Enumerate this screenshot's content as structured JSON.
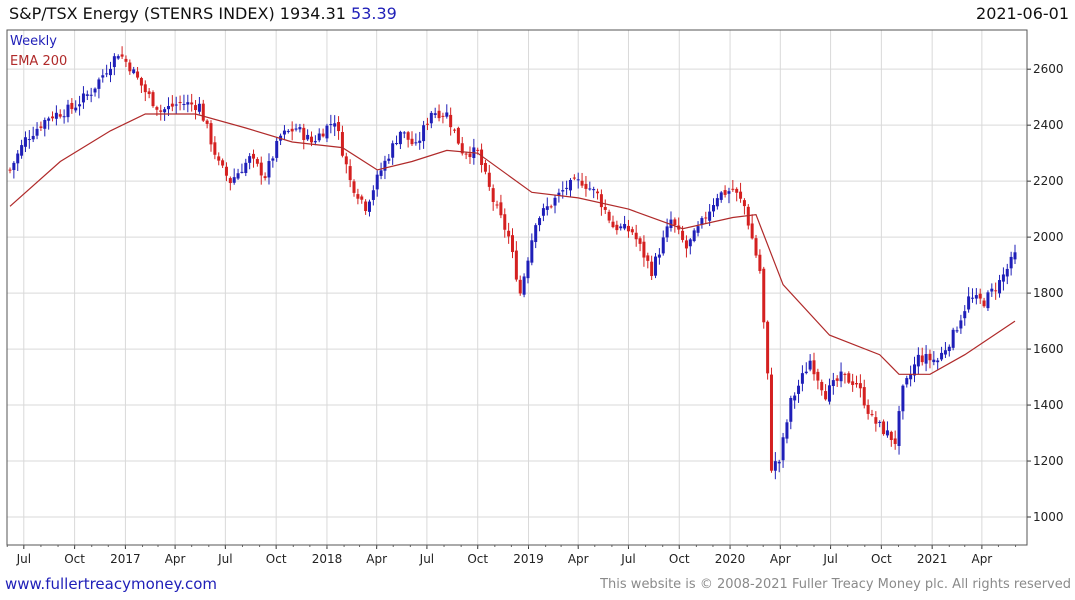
{
  "header": {
    "title": "S&P/TSX Energy (STENRS INDEX) 1934.31",
    "change": "53.39",
    "date": "2021-06-01"
  },
  "legend": {
    "weekly": "Weekly",
    "ema": "EMA 200"
  },
  "footer": {
    "site": "www.fullertreacymoney.com",
    "copyright": "This website is © 2008-2021 Fuller Treacy Money plc. All rights reserved"
  },
  "colors": {
    "up": "#1f1fb8",
    "down": "#d42020",
    "ema": "#b02a2a",
    "grid": "#d9d9d9"
  },
  "chart_data": {
    "type": "candlestick",
    "grid": true,
    "ylim": [
      900,
      2740
    ],
    "y_ticks": [
      1000,
      1200,
      1400,
      1600,
      1800,
      2000,
      2200,
      2400,
      2600
    ],
    "x_ticks": [
      "Jul",
      "Oct",
      "2017",
      "Apr",
      "Jul",
      "Oct",
      "2018",
      "Apr",
      "Jul",
      "Oct",
      "2019",
      "Apr",
      "Jul",
      "Oct",
      "2020",
      "Apr",
      "Jul",
      "Oct",
      "2021",
      "Apr"
    ],
    "series": [
      {
        "name": "Weekly",
        "kind": "ohlc",
        "close_anchors": [
          [
            "2016-06-06",
            2240
          ],
          [
            "2016-07-04",
            2350
          ],
          [
            "2016-08-15",
            2430
          ],
          [
            "2016-09-26",
            2460
          ],
          [
            "2016-10-31",
            2520
          ],
          [
            "2016-12-19",
            2660
          ],
          [
            "2017-01-09",
            2610
          ],
          [
            "2017-02-06",
            2520
          ],
          [
            "2017-03-06",
            2450
          ],
          [
            "2017-04-10",
            2480
          ],
          [
            "2017-05-15",
            2470
          ],
          [
            "2017-06-19",
            2260
          ],
          [
            "2017-07-10",
            2200
          ],
          [
            "2017-08-14",
            2280
          ],
          [
            "2017-09-11",
            2220
          ],
          [
            "2017-10-09",
            2360
          ],
          [
            "2017-11-06",
            2390
          ],
          [
            "2017-12-04",
            2340
          ],
          [
            "2018-01-15",
            2420
          ],
          [
            "2018-02-12",
            2200
          ],
          [
            "2018-03-12",
            2110
          ],
          [
            "2018-04-09",
            2240
          ],
          [
            "2018-05-14",
            2380
          ],
          [
            "2018-06-11",
            2320
          ],
          [
            "2018-07-09",
            2450
          ],
          [
            "2018-08-06",
            2440
          ],
          [
            "2018-09-03",
            2310
          ],
          [
            "2018-10-01",
            2300
          ],
          [
            "2018-10-29",
            2130
          ],
          [
            "2018-11-26",
            2000
          ],
          [
            "2018-12-17",
            1800
          ],
          [
            "2019-01-14",
            2060
          ],
          [
            "2019-02-11",
            2120
          ],
          [
            "2019-03-11",
            2180
          ],
          [
            "2019-04-08",
            2200
          ],
          [
            "2019-05-06",
            2150
          ],
          [
            "2019-06-03",
            2040
          ],
          [
            "2019-07-08",
            2020
          ],
          [
            "2019-08-12",
            1880
          ],
          [
            "2019-09-16",
            2060
          ],
          [
            "2019-10-14",
            1960
          ],
          [
            "2019-11-11",
            2050
          ],
          [
            "2019-12-09",
            2150
          ],
          [
            "2020-01-06",
            2170
          ],
          [
            "2020-01-27",
            2110
          ],
          [
            "2020-02-24",
            1880
          ],
          [
            "2020-03-09",
            1500
          ],
          [
            "2020-03-16",
            1180
          ],
          [
            "2020-03-30",
            1200
          ],
          [
            "2020-04-20",
            1410
          ],
          [
            "2020-05-25",
            1560
          ],
          [
            "2020-06-22",
            1440
          ],
          [
            "2020-07-20",
            1500
          ],
          [
            "2020-08-17",
            1480
          ],
          [
            "2020-09-14",
            1350
          ],
          [
            "2020-10-26",
            1270
          ],
          [
            "2020-11-09",
            1450
          ],
          [
            "2020-12-07",
            1570
          ],
          [
            "2021-01-11",
            1560
          ],
          [
            "2021-02-08",
            1650
          ],
          [
            "2021-03-08",
            1780
          ],
          [
            "2021-04-05",
            1770
          ],
          [
            "2021-05-03",
            1840
          ],
          [
            "2021-05-31",
            1934
          ]
        ]
      },
      {
        "name": "EMA 200",
        "kind": "line",
        "points": [
          [
            "2016-06-06",
            2110
          ],
          [
            "2016-09-05",
            2270
          ],
          [
            "2016-12-05",
            2380
          ],
          [
            "2017-02-06",
            2440
          ],
          [
            "2017-05-08",
            2440
          ],
          [
            "2017-08-07",
            2390
          ],
          [
            "2017-10-30",
            2340
          ],
          [
            "2018-01-29",
            2320
          ],
          [
            "2018-04-02",
            2240
          ],
          [
            "2018-06-04",
            2270
          ],
          [
            "2018-08-06",
            2310
          ],
          [
            "2018-10-01",
            2300
          ],
          [
            "2019-01-07",
            2160
          ],
          [
            "2019-04-01",
            2140
          ],
          [
            "2019-07-01",
            2100
          ],
          [
            "2019-10-07",
            2030
          ],
          [
            "2020-01-06",
            2070
          ],
          [
            "2020-02-17",
            2080
          ],
          [
            "2020-04-06",
            1830
          ],
          [
            "2020-06-29",
            1650
          ],
          [
            "2020-09-28",
            1580
          ],
          [
            "2020-11-02",
            1510
          ],
          [
            "2020-12-28",
            1510
          ],
          [
            "2021-03-01",
            1580
          ],
          [
            "2021-05-31",
            1700
          ]
        ]
      }
    ]
  }
}
